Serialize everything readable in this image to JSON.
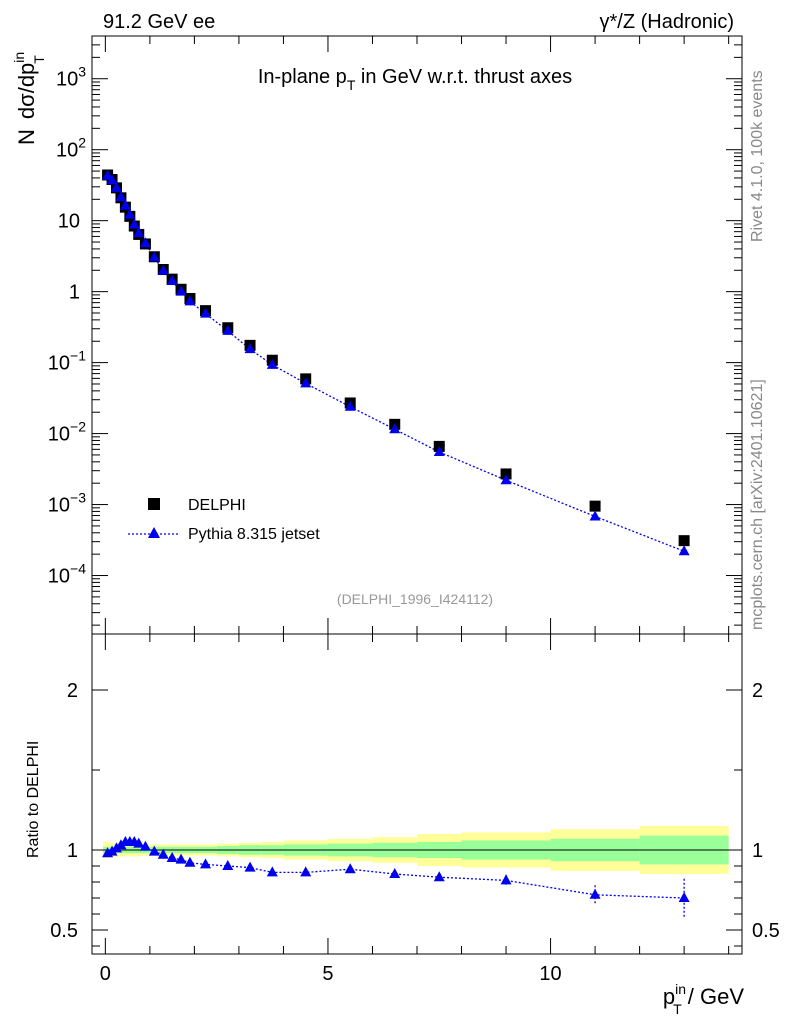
{
  "header": {
    "left": "91.2 GeV ee",
    "right_gamma": "γ",
    "right_rest": "*/Z (Hadronic)"
  },
  "plot_title": {
    "main": "In-plane p",
    "sub": "T",
    "rest": " in GeV w.r.t. thrust axes"
  },
  "side_text": {
    "rivet": "Rivet 4.1.0,  100k events",
    "mcplots": "mcplots.cern.ch [arXiv:2401.10621]"
  },
  "watermark": "(DELPHI_1996_I424112)",
  "y_label": {
    "n": "N",
    "dsig": "dσ/dp",
    "sup": "in",
    "sub": "T"
  },
  "ratio_label": "Ratio to DELPHI",
  "x_label": {
    "p": "p",
    "sup": "in",
    "sub": "T",
    "rest": " / GeV"
  },
  "legend": {
    "data": "DELPHI",
    "mc": "Pythia 8.315 jetset"
  },
  "colors": {
    "mc": "#0000ee",
    "data": "#000000",
    "band_inner": "#99ff99",
    "band_outer": "#ffff99"
  },
  "chart_data": {
    "type": "scatter",
    "x_range": [
      -0.3,
      14.3
    ],
    "x_ticks": [
      0,
      5,
      10
    ],
    "main": {
      "y_scale": "log",
      "y_range": [
        1.5e-05,
        4000
      ],
      "y_ticks": [
        {
          "v": 0.0001,
          "m": "10",
          "e": "−4"
        },
        {
          "v": 0.001,
          "m": "10",
          "e": "−3"
        },
        {
          "v": 0.01,
          "m": "10",
          "e": "−2"
        },
        {
          "v": 0.1,
          "m": "10",
          "e": "−1"
        },
        {
          "v": 1,
          "m": "1",
          "e": ""
        },
        {
          "v": 10,
          "m": "10",
          "e": ""
        },
        {
          "v": 100,
          "m": "10",
          "e": "2"
        },
        {
          "v": 1000,
          "m": "10",
          "e": "3"
        }
      ]
    },
    "ratio": {
      "y_range": [
        0.35,
        2.35
      ],
      "y_ticks": [
        0.5,
        1,
        2
      ],
      "y_tick_labels": [
        "0.5",
        "1",
        "2"
      ]
    },
    "series": [
      {
        "name": "DELPHI",
        "marker": "square",
        "x": [
          0.05,
          0.15,
          0.25,
          0.35,
          0.45,
          0.55,
          0.65,
          0.75,
          0.9,
          1.1,
          1.3,
          1.5,
          1.7,
          1.9,
          2.25,
          2.75,
          3.25,
          3.75,
          4.5,
          5.5,
          6.5,
          7.5,
          9.0,
          11.0,
          13.0
        ],
        "y": [
          44,
          38,
          29,
          21,
          15.5,
          11.5,
          8.4,
          6.4,
          4.7,
          3.1,
          2.05,
          1.5,
          1.08,
          0.8,
          0.54,
          0.31,
          0.175,
          0.108,
          0.059,
          0.027,
          0.0135,
          0.0066,
          0.0027,
          0.00095,
          0.00031
        ]
      },
      {
        "name": "Pythia 8.315 jetset",
        "marker": "triangle",
        "x": [
          0.05,
          0.15,
          0.25,
          0.35,
          0.45,
          0.55,
          0.65,
          0.75,
          0.9,
          1.1,
          1.3,
          1.5,
          1.7,
          1.9,
          2.25,
          2.75,
          3.25,
          3.75,
          4.5,
          5.5,
          6.5,
          7.5,
          9.0,
          11.0,
          13.0
        ],
        "y": [
          43,
          37,
          29,
          21.5,
          16.2,
          12.1,
          8.8,
          6.7,
          4.8,
          3.05,
          1.97,
          1.41,
          1.0,
          0.73,
          0.49,
          0.28,
          0.155,
          0.093,
          0.051,
          0.0239,
          0.0115,
          0.0055,
          0.0022,
          0.00068,
          0.00022
        ]
      }
    ],
    "ratio_points": {
      "x": [
        0.05,
        0.15,
        0.25,
        0.35,
        0.45,
        0.55,
        0.65,
        0.75,
        0.9,
        1.1,
        1.3,
        1.5,
        1.7,
        1.9,
        2.25,
        2.75,
        3.25,
        3.75,
        4.5,
        5.5,
        6.5,
        7.5,
        9.0,
        11.0,
        13.0
      ],
      "y": [
        0.98,
        0.99,
        1.01,
        1.03,
        1.05,
        1.05,
        1.05,
        1.04,
        1.02,
        0.99,
        0.97,
        0.95,
        0.94,
        0.92,
        0.91,
        0.9,
        0.89,
        0.86,
        0.86,
        0.88,
        0.85,
        0.83,
        0.81,
        0.72,
        0.7
      ],
      "err": [
        0.01,
        0.01,
        0.01,
        0.01,
        0.01,
        0.01,
        0.01,
        0.01,
        0.01,
        0.01,
        0.01,
        0.01,
        0.01,
        0.01,
        0.01,
        0.01,
        0.01,
        0.01,
        0.01,
        0.015,
        0.02,
        0.025,
        0.035,
        0.06,
        0.12
      ]
    },
    "bands": {
      "edges": [
        -0.05,
        0.1,
        0.2,
        0.3,
        0.4,
        0.5,
        0.6,
        0.7,
        0.8,
        1.0,
        1.2,
        1.4,
        1.6,
        1.8,
        2.0,
        2.5,
        3.0,
        3.5,
        4.0,
        5.0,
        6.0,
        7.0,
        8.0,
        10.0,
        12.0,
        14.0
      ],
      "inner": [
        0.02,
        0.02,
        0.02,
        0.02,
        0.02,
        0.02,
        0.02,
        0.02,
        0.02,
        0.02,
        0.02,
        0.02,
        0.02,
        0.02,
        0.02,
        0.025,
        0.03,
        0.03,
        0.035,
        0.04,
        0.045,
        0.05,
        0.06,
        0.07,
        0.09
      ],
      "outer": [
        0.05,
        0.045,
        0.045,
        0.04,
        0.04,
        0.04,
        0.04,
        0.04,
        0.035,
        0.035,
        0.035,
        0.035,
        0.035,
        0.035,
        0.035,
        0.04,
        0.045,
        0.05,
        0.06,
        0.07,
        0.08,
        0.1,
        0.11,
        0.13,
        0.15
      ]
    }
  }
}
